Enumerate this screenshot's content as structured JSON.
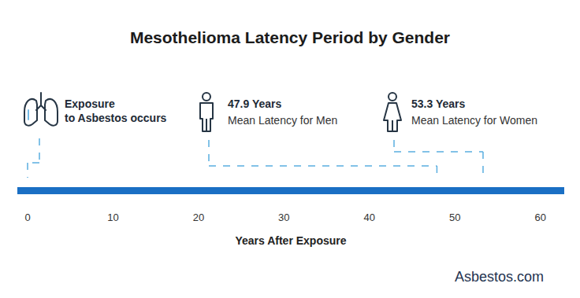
{
  "chart_data": {
    "type": "timeline",
    "title": "Mesothelioma Latency Period by Gender",
    "x_label": "Years After Exposure",
    "x": [
      0,
      47.9,
      53.3
    ],
    "value_labels": [
      null,
      "47.9 Years",
      "53.3 Years"
    ],
    "labels": [
      "Exposure\nto Asbestos occurs",
      "Mean Latency for Men",
      "Mean Latency for Women"
    ],
    "xlim": [
      -1.2,
      62.8
    ],
    "xticks": [
      0,
      10,
      20,
      30,
      40,
      50,
      60
    ],
    "color": "#1a6fc4",
    "grid": false,
    "source": "Asbestos.com"
  }
}
